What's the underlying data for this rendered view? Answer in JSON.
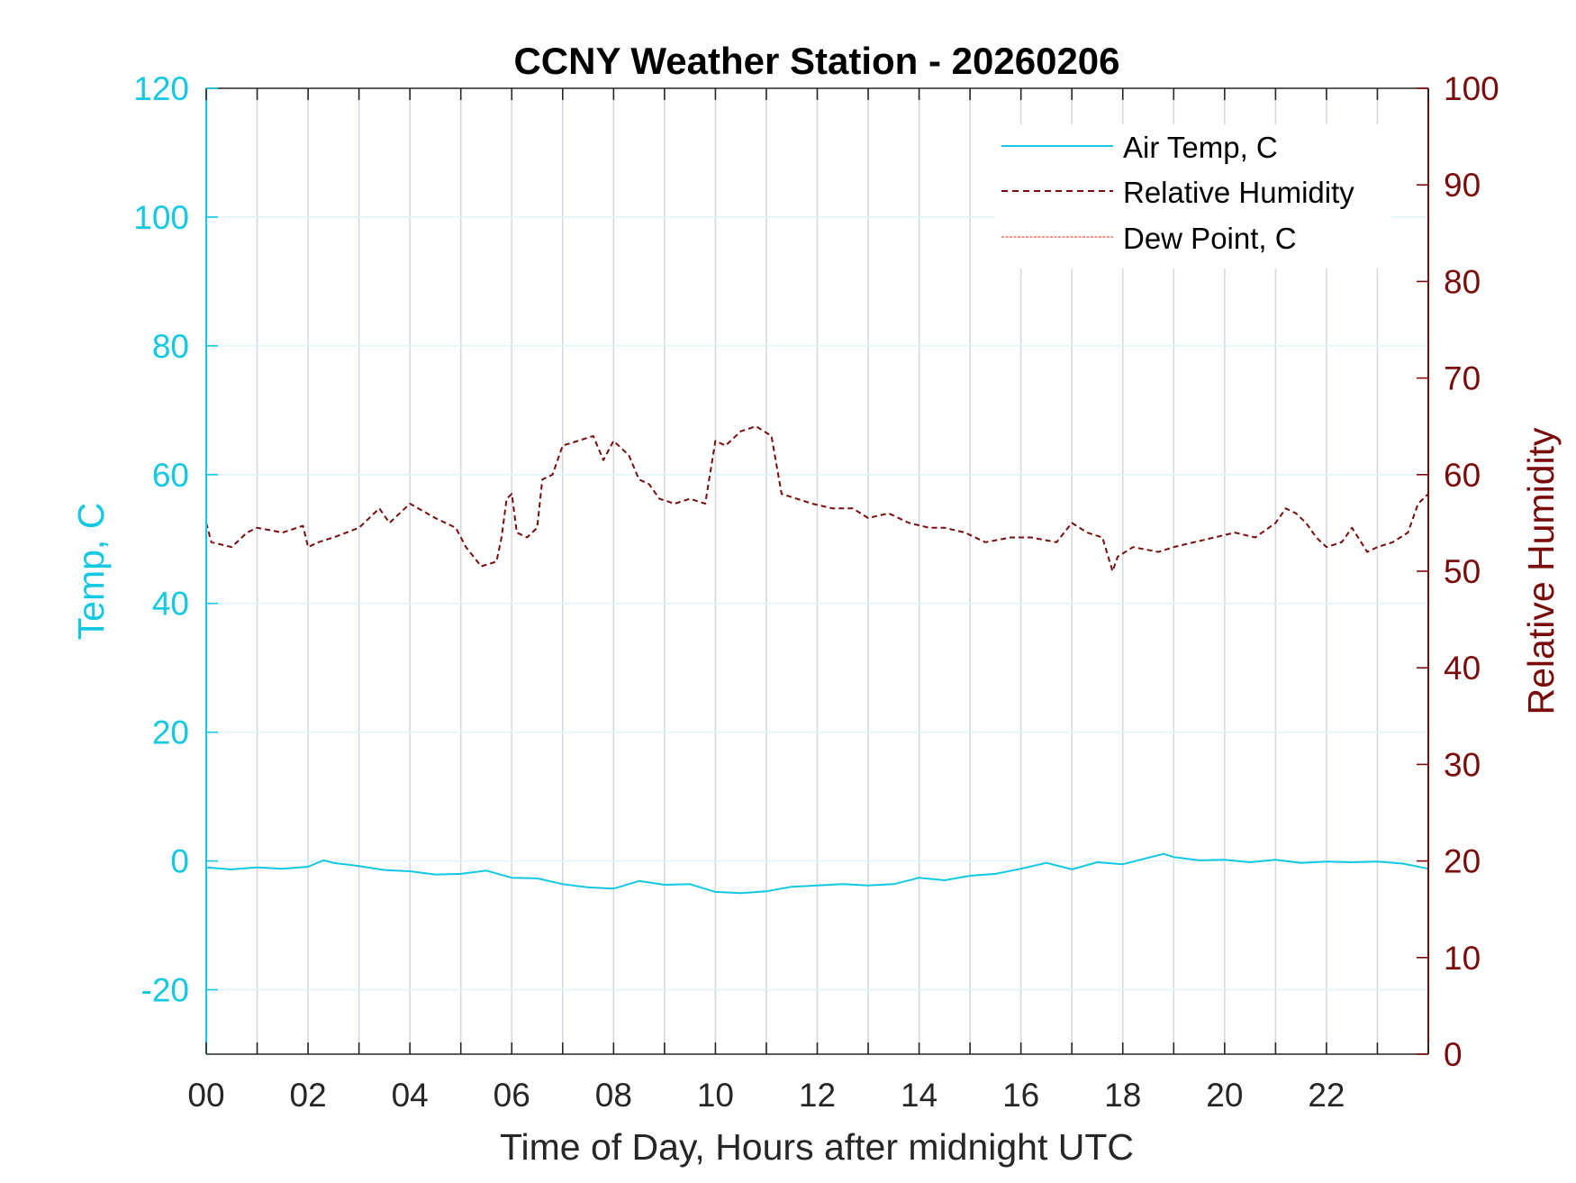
{
  "chart_data": {
    "type": "line",
    "title": "CCNY Weather Station - 20260206",
    "xlabel": "Time of Day, Hours after midnight UTC",
    "ylabel_left": "Temp, C",
    "ylabel_right": "Relative Humidity",
    "xlim": [
      0,
      24
    ],
    "ylim_left": [
      -30,
      120
    ],
    "ylim_right": [
      0,
      100
    ],
    "x_tick_labels": [
      "00",
      "02",
      "04",
      "06",
      "08",
      "10",
      "12",
      "14",
      "16",
      "18",
      "20",
      "22"
    ],
    "y_left_ticks": [
      -20,
      0,
      20,
      40,
      60,
      80,
      100,
      120
    ],
    "y_right_ticks": [
      0,
      10,
      20,
      30,
      40,
      50,
      60,
      70,
      80,
      90,
      100
    ],
    "grid": true,
    "legend_position": "top-right",
    "colors": {
      "air_temp": "#12c8e3",
      "humidity": "#7a0b0b",
      "dew_point": "#f26d5b",
      "axis_dark": "#262626"
    },
    "legend": [
      {
        "label": "Air Temp, C",
        "color": "#12c8e3",
        "style": "solid"
      },
      {
        "label": "Relative Humidity",
        "color": "#7a0b0b",
        "style": "dashed"
      },
      {
        "label": "Dew Point, C",
        "color": "#f26d5b",
        "style": "dotted"
      }
    ],
    "series": [
      {
        "name": "Air Temp, C",
        "axis": "left",
        "x": [
          0,
          0.5,
          1,
          1.5,
          2,
          2.3,
          2.5,
          3,
          3.5,
          4,
          4.5,
          5,
          5.5,
          6,
          6.5,
          7,
          7.5,
          8,
          8.5,
          9,
          9.5,
          10,
          10.5,
          11,
          11.5,
          12,
          12.5,
          13,
          13.5,
          14,
          14.5,
          15,
          15.5,
          16,
          16.5,
          17,
          17.5,
          18,
          18.5,
          18.8,
          19,
          19.5,
          20,
          20.5,
          21,
          21.5,
          22,
          22.5,
          23,
          23.5,
          24
        ],
        "values": [
          -1.0,
          -1.3,
          -1.0,
          -1.2,
          -0.9,
          0.1,
          -0.3,
          -0.8,
          -1.4,
          -1.6,
          -2.1,
          -2.0,
          -1.5,
          -2.6,
          -2.7,
          -3.6,
          -4.1,
          -4.3,
          -3.1,
          -3.7,
          -3.6,
          -4.8,
          -5.0,
          -4.7,
          -4.0,
          -3.8,
          -3.6,
          -3.8,
          -3.6,
          -2.6,
          -3.0,
          -2.3,
          -2.0,
          -1.2,
          -0.3,
          -1.3,
          -0.2,
          -0.5,
          0.5,
          1.1,
          0.6,
          0.1,
          0.2,
          -0.2,
          0.2,
          -0.3,
          -0.1,
          -0.2,
          -0.1,
          -0.4,
          -1.2
        ]
      },
      {
        "name": "Relative Humidity",
        "axis": "right",
        "x": [
          0,
          0.1,
          0.5,
          0.8,
          1,
          1.5,
          1.9,
          2,
          2.2,
          2.5,
          3,
          3.4,
          3.6,
          4,
          4.5,
          4.9,
          5.1,
          5.4,
          5.7,
          5.8,
          5.9,
          6,
          6.1,
          6.3,
          6.5,
          6.6,
          6.8,
          7,
          7.3,
          7.6,
          7.8,
          8,
          8.3,
          8.5,
          8.7,
          8.9,
          9.2,
          9.5,
          9.8,
          10,
          10.2,
          10.5,
          10.8,
          11.1,
          11.3,
          11.6,
          11.9,
          12.3,
          12.7,
          13,
          13.4,
          13.8,
          14.2,
          14.5,
          14.9,
          15.3,
          15.8,
          16.2,
          16.7,
          17,
          17.3,
          17.6,
          17.8,
          17.9,
          18.2,
          18.7,
          19,
          19.4,
          19.8,
          20.2,
          20.6,
          21,
          21.2,
          21.4,
          21.6,
          21.8,
          22,
          22.3,
          22.5,
          22.8,
          23,
          23.3,
          23.6,
          23.8,
          24
        ],
        "values": [
          55.0,
          53.0,
          52.5,
          54.0,
          54.5,
          54.0,
          54.7,
          52.5,
          53.0,
          53.5,
          54.5,
          56.5,
          55.0,
          57.0,
          55.5,
          54.5,
          52.5,
          50.5,
          51.0,
          53.5,
          57.5,
          58.0,
          54.0,
          53.5,
          54.5,
          59.5,
          60.0,
          63.0,
          63.5,
          64.0,
          61.5,
          63.5,
          62.0,
          59.5,
          59.0,
          57.5,
          57.0,
          57.5,
          57.0,
          63.5,
          63.0,
          64.5,
          65.0,
          64.0,
          58.0,
          57.5,
          57.0,
          56.5,
          56.5,
          55.5,
          56.0,
          55.0,
          54.5,
          54.5,
          54.0,
          53.0,
          53.5,
          53.5,
          53.0,
          55.0,
          54.0,
          53.5,
          50.0,
          51.5,
          52.5,
          52.0,
          52.5,
          53.0,
          53.5,
          54.0,
          53.5,
          55.0,
          56.5,
          56.0,
          55.0,
          53.5,
          52.5,
          53.0,
          54.5,
          52.0,
          52.5,
          53.0,
          54.0,
          57.0,
          58.0
        ]
      },
      {
        "name": "Dew Point, C",
        "axis": "left",
        "x": [],
        "values": []
      }
    ]
  }
}
